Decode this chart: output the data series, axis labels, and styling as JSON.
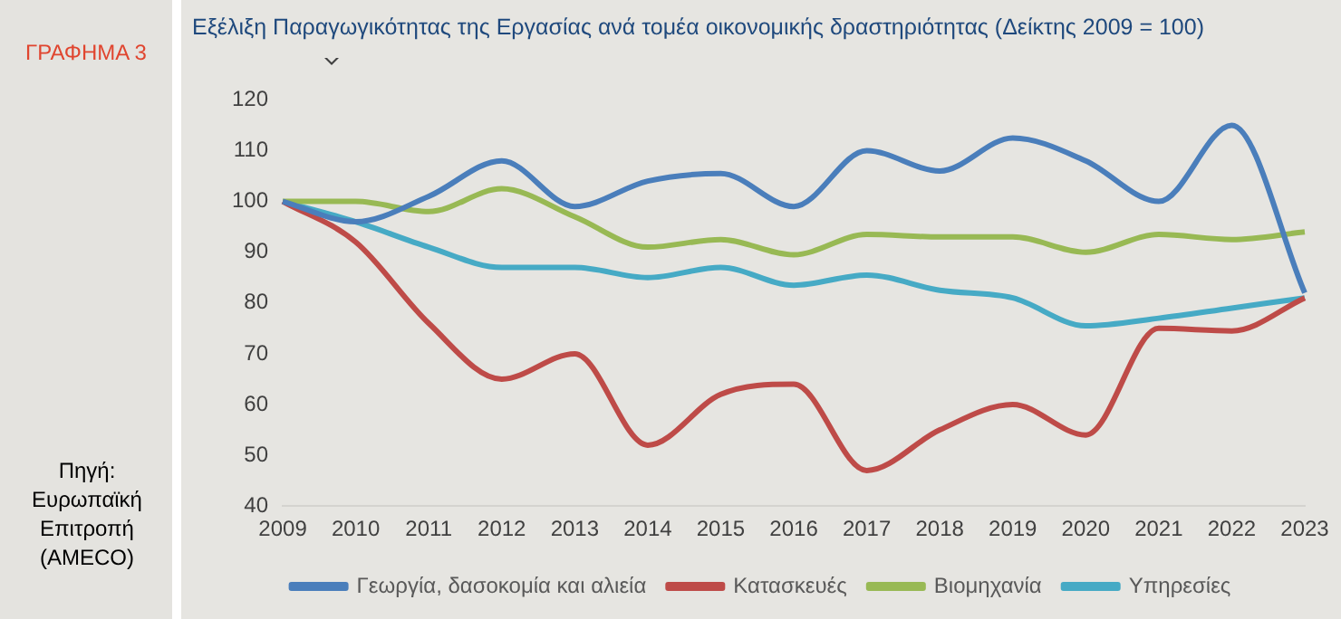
{
  "chart_data": {
    "type": "line",
    "title": "Εξέλιξη Παραγωγικότητας της Εργασίας ανά τομέα οικονομικής δραστηριότητας (Δείκτης 2009 = 100)",
    "annotations": [
      "ΓΡΑΦΗΜΑ 3",
      "Πηγή: Ευρωπαϊκή Επιτροπή (AMECO)"
    ],
    "categories": [
      "2009",
      "2010",
      "2011",
      "2012",
      "2013",
      "2014",
      "2015",
      "2016",
      "2017",
      "2018",
      "2019",
      "2020",
      "2021",
      "2022",
      "2023"
    ],
    "series": [
      {
        "name": "Γεωργία, δασοκομία και αλιεία",
        "color": "#4a7ebb",
        "values": [
          100,
          96,
          101,
          108,
          99,
          104,
          105.5,
          99,
          110,
          106,
          112.5,
          108,
          100,
          115,
          82
        ]
      },
      {
        "name": "Κατασκευές",
        "color": "#be4b48",
        "values": [
          100,
          92,
          76,
          65,
          70,
          52,
          62,
          64,
          47,
          55,
          60,
          54,
          75,
          74.5,
          81
        ]
      },
      {
        "name": "Βιομηχανία",
        "color": "#98b954",
        "values": [
          100,
          100,
          98,
          102.5,
          97,
          91,
          92.5,
          89.5,
          93.5,
          93,
          93,
          90,
          93.5,
          92.5,
          94
        ]
      },
      {
        "name": "Υπηρεσίες",
        "color": "#46aac5",
        "values": [
          100,
          96,
          91,
          87,
          87,
          85,
          87,
          83.5,
          85.5,
          82.5,
          81,
          75.5,
          77,
          79,
          81
        ]
      }
    ],
    "ylim": [
      40,
      120
    ],
    "yticks": [
      40,
      50,
      60,
      70,
      80,
      90,
      100,
      110,
      120
    ],
    "grid": false,
    "legend": "bottom",
    "marker": "none",
    "line_style": "solid"
  }
}
